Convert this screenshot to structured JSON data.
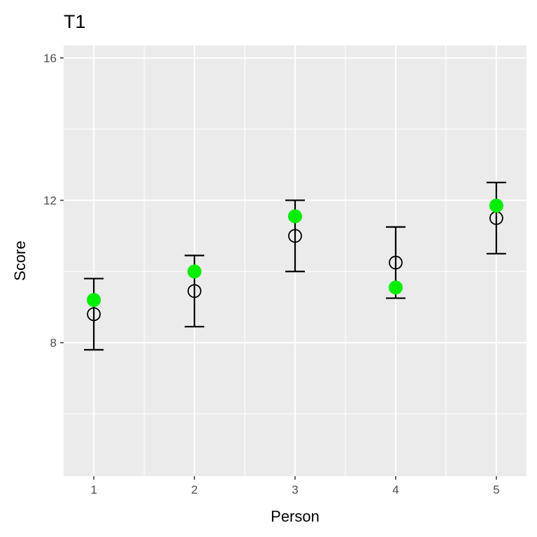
{
  "chart_data": {
    "type": "scatter",
    "title": "T1",
    "xlabel": "Person",
    "ylabel": "Score",
    "categories": [
      "1",
      "2",
      "3",
      "4",
      "5"
    ],
    "x": [
      1,
      2,
      3,
      4,
      5
    ],
    "xlim": [
      0.7,
      5.3
    ],
    "ylim": [
      4.25,
      16.35
    ],
    "y_ticks": [
      8,
      12,
      16
    ],
    "y_tick_labels": [
      "8",
      "12",
      "16"
    ],
    "grid": true,
    "legend": "none",
    "series": [
      {
        "marker": "open-circle",
        "values": [
          8.8,
          9.45,
          11.0,
          10.25,
          11.5
        ],
        "error_low": [
          7.8,
          8.45,
          10.0,
          9.25,
          10.5
        ],
        "error_high": [
          9.8,
          10.45,
          12.0,
          11.25,
          12.5
        ]
      },
      {
        "marker": "filled-circle",
        "color": "#00ee00",
        "values": [
          9.2,
          10.0,
          11.55,
          9.55,
          11.85
        ]
      }
    ],
    "colors": {
      "panel_background": "#ebebeb",
      "grid_major": "#ffffff",
      "tick_text": "#4d4d4d",
      "error_bar": "#000000",
      "observed_point": "#00ee00"
    }
  }
}
